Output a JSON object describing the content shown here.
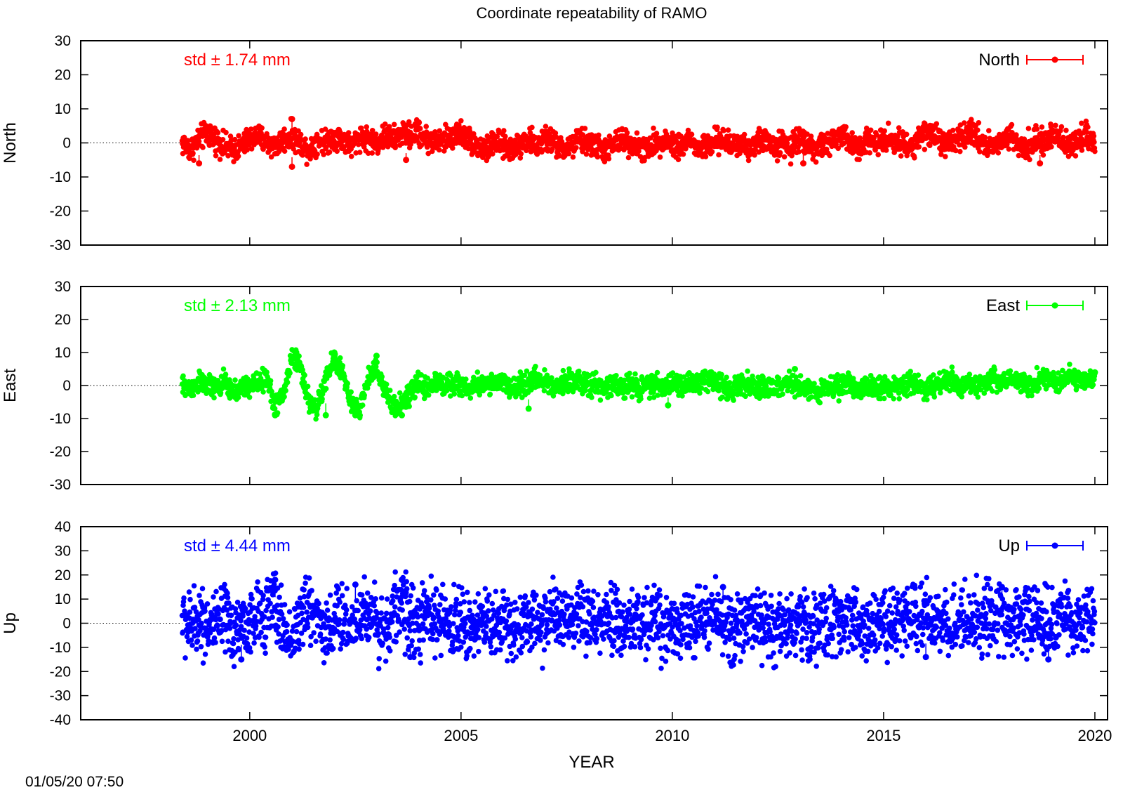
{
  "title": "Coordinate repeatability of RAMO",
  "timestamp": "01/05/20 07:50",
  "xlabel": "YEAR",
  "x_ticks": [
    2000,
    2005,
    2010,
    2015,
    2020
  ],
  "chart_data": [
    {
      "type": "scatter",
      "component": "North",
      "ylabel": "North",
      "legend": "North",
      "legend_position": "top-right",
      "std_text": "std ± 1.74 mm",
      "color": "#ff0000",
      "xlim": [
        1996,
        2020.3
      ],
      "ylim": [
        -30,
        30
      ],
      "y_ticks": [
        -30,
        -20,
        -10,
        0,
        10,
        20,
        30
      ],
      "zero_line_x_start": 1996,
      "x": [
        1998.4,
        1998.6,
        1998.8,
        1999.0,
        1999.2,
        1999.4,
        1999.6,
        1999.8,
        2000.0,
        2000.2,
        2000.4,
        2000.6,
        2000.8,
        2001.0,
        2001.2,
        2001.4,
        2001.6,
        2001.8,
        2002.0,
        2002.2,
        2002.4,
        2002.6,
        2002.8,
        2003.0,
        2003.2,
        2003.4,
        2003.6,
        2003.8,
        2004.0,
        2004.2,
        2004.4,
        2004.6,
        2004.8,
        2005.0,
        2005.2,
        2005.4,
        2005.6,
        2005.8,
        2006.0,
        2006.2,
        2006.4,
        2006.6,
        2006.8,
        2007.0,
        2007.2,
        2007.4,
        2007.6,
        2007.8,
        2008.0,
        2008.2,
        2008.4,
        2008.6,
        2008.8,
        2009.0,
        2009.2,
        2009.4,
        2009.6,
        2009.8,
        2010.0,
        2010.2,
        2010.4,
        2010.6,
        2010.8,
        2011.0,
        2011.2,
        2011.4,
        2011.6,
        2011.8,
        2012.0,
        2012.2,
        2012.4,
        2012.6,
        2012.8,
        2013.0,
        2013.2,
        2013.4,
        2013.6,
        2013.8,
        2014.0,
        2014.2,
        2014.4,
        2014.6,
        2014.8,
        2015.0,
        2015.2,
        2015.4,
        2015.6,
        2015.8,
        2016.0,
        2016.2,
        2016.4,
        2016.6,
        2016.8,
        2017.0,
        2017.2,
        2017.4,
        2017.6,
        2017.8,
        2018.0,
        2018.2,
        2018.4,
        2018.6,
        2018.8,
        2019.0,
        2019.2,
        2019.4,
        2019.6,
        2019.8,
        2020.0
      ],
      "y": [
        0,
        -2,
        1,
        3,
        1,
        -1,
        -2,
        -1,
        1,
        2,
        0,
        -1,
        1,
        2,
        0,
        -2,
        1,
        0,
        2,
        1,
        -1,
        2,
        1,
        0,
        2,
        1,
        3,
        2,
        3,
        1,
        0,
        1,
        2,
        3,
        1,
        -1,
        -2,
        0,
        -1,
        -2,
        0,
        1,
        -1,
        1,
        0,
        -2,
        -1,
        1,
        0,
        -1,
        -2,
        -1,
        1,
        0,
        -1,
        -2,
        0,
        1,
        0,
        -1,
        1,
        -2,
        -1,
        0,
        1,
        -1,
        0,
        -1,
        0,
        1,
        -1,
        0,
        -2,
        2,
        0,
        -2,
        -1,
        1,
        2,
        0,
        -1,
        1,
        0,
        2,
        1,
        0,
        -1,
        1,
        3,
        2,
        0,
        -1,
        1,
        3,
        2,
        0,
        -1,
        1,
        2,
        0,
        -1,
        1,
        0,
        2,
        1,
        -1,
        1,
        2,
        1
      ],
      "outliers": [
        {
          "x": 1998.8,
          "y": -6
        },
        {
          "x": 2001.0,
          "y": 7
        },
        {
          "x": 2001.0,
          "y": -7
        },
        {
          "x": 2003.7,
          "y": -5
        },
        {
          "x": 2004.0,
          "y": 6
        },
        {
          "x": 2013.1,
          "y": -6
        },
        {
          "x": 2016.1,
          "y": 5
        },
        {
          "x": 2018.7,
          "y": -6
        }
      ]
    },
    {
      "type": "scatter",
      "component": "East",
      "ylabel": "East",
      "legend": "East",
      "legend_position": "top-right",
      "std_text": "std ± 2.13 mm",
      "color": "#00ff00",
      "xlim": [
        1996,
        2020.3
      ],
      "ylim": [
        -30,
        30
      ],
      "y_ticks": [
        -30,
        -20,
        -10,
        0,
        10,
        20,
        30
      ],
      "zero_line_x_start": 1996,
      "x": [
        1998.4,
        1998.6,
        1998.8,
        1999.0,
        1999.2,
        1999.4,
        1999.6,
        1999.8,
        2000.0,
        2000.2,
        2000.4,
        2000.6,
        2000.8,
        2001.0,
        2001.2,
        2001.4,
        2001.6,
        2001.8,
        2002.0,
        2002.2,
        2002.4,
        2002.6,
        2002.8,
        2003.0,
        2003.2,
        2003.4,
        2003.6,
        2003.8,
        2004.0,
        2004.2,
        2004.4,
        2004.6,
        2004.8,
        2005.0,
        2005.2,
        2005.4,
        2005.6,
        2005.8,
        2006.0,
        2006.2,
        2006.4,
        2006.6,
        2006.8,
        2007.0,
        2007.2,
        2007.4,
        2007.6,
        2007.8,
        2008.0,
        2008.2,
        2008.4,
        2008.6,
        2008.8,
        2009.0,
        2009.2,
        2009.4,
        2009.6,
        2009.8,
        2010.0,
        2010.2,
        2010.4,
        2010.6,
        2010.8,
        2011.0,
        2011.2,
        2011.4,
        2011.6,
        2011.8,
        2012.0,
        2012.2,
        2012.4,
        2012.6,
        2012.8,
        2013.0,
        2013.2,
        2013.4,
        2013.6,
        2013.8,
        2014.0,
        2014.2,
        2014.4,
        2014.6,
        2014.8,
        2015.0,
        2015.2,
        2015.4,
        2015.6,
        2015.8,
        2016.0,
        2016.2,
        2016.4,
        2016.6,
        2016.8,
        2017.0,
        2017.2,
        2017.4,
        2017.6,
        2017.8,
        2018.0,
        2018.2,
        2018.4,
        2018.6,
        2018.8,
        2019.0,
        2019.2,
        2019.4,
        2019.6,
        2019.8,
        2020.0
      ],
      "y": [
        0,
        -1,
        1,
        0,
        -1,
        1,
        -2,
        -1,
        0,
        1,
        2,
        -6,
        -3,
        9,
        6,
        -5,
        -7,
        2,
        8,
        4,
        -6,
        -7,
        2,
        6,
        -2,
        -7,
        -5,
        -3,
        1,
        -1,
        1,
        0,
        1,
        0,
        -1,
        0,
        1,
        0,
        1,
        -1,
        0,
        1,
        2,
        1,
        0,
        1,
        2,
        1,
        0,
        0,
        -1,
        0,
        -1,
        1,
        -1,
        0,
        0,
        -1,
        1,
        0,
        1,
        0,
        2,
        1,
        0,
        -1,
        0,
        1,
        0,
        -1,
        -1,
        0,
        1,
        -1,
        -1,
        -2,
        0,
        -1,
        0,
        1,
        -1,
        0,
        -1,
        0,
        -1,
        0,
        1,
        0,
        -1,
        0,
        1,
        2,
        0,
        1,
        0,
        1,
        2,
        1,
        3,
        1,
        0,
        1,
        2,
        1,
        2,
        3,
        2,
        1,
        2
      ],
      "outliers": [
        {
          "x": 2001.1,
          "y": 10
        },
        {
          "x": 2002.0,
          "y": 10
        },
        {
          "x": 2003.0,
          "y": 9
        },
        {
          "x": 2000.6,
          "y": -9
        },
        {
          "x": 2001.8,
          "y": -9
        },
        {
          "x": 2002.5,
          "y": -9
        },
        {
          "x": 2003.6,
          "y": -9
        },
        {
          "x": 2006.6,
          "y": -7
        },
        {
          "x": 2009.9,
          "y": -6
        },
        {
          "x": 2012.9,
          "y": 5
        },
        {
          "x": 2011.3,
          "y": -4
        },
        {
          "x": 2020.0,
          "y": 4
        }
      ]
    },
    {
      "type": "scatter",
      "component": "Up",
      "ylabel": "Up",
      "legend": "Up",
      "legend_position": "top-right",
      "std_text": "std ± 4.44 mm",
      "color": "#0000ff",
      "xlim": [
        1996,
        2020.3
      ],
      "ylim": [
        -40,
        40
      ],
      "y_ticks": [
        -40,
        -30,
        -20,
        -10,
        0,
        10,
        20,
        30,
        40
      ],
      "zero_line_x_start": 1996,
      "x": [
        1998.4,
        1998.6,
        1998.8,
        1999.0,
        1999.2,
        1999.4,
        1999.6,
        1999.8,
        2000.0,
        2000.2,
        2000.4,
        2000.6,
        2000.8,
        2001.0,
        2001.2,
        2001.4,
        2001.6,
        2001.8,
        2002.0,
        2002.2,
        2002.4,
        2002.6,
        2002.8,
        2003.0,
        2003.2,
        2003.4,
        2003.6,
        2003.8,
        2004.0,
        2004.2,
        2004.4,
        2004.6,
        2004.8,
        2005.0,
        2005.2,
        2005.4,
        2005.6,
        2005.8,
        2006.0,
        2006.2,
        2006.4,
        2006.6,
        2006.8,
        2007.0,
        2007.2,
        2007.4,
        2007.6,
        2007.8,
        2008.0,
        2008.2,
        2008.4,
        2008.6,
        2008.8,
        2009.0,
        2009.2,
        2009.4,
        2009.6,
        2009.8,
        2010.0,
        2010.2,
        2010.4,
        2010.6,
        2010.8,
        2011.0,
        2011.2,
        2011.4,
        2011.6,
        2011.8,
        2012.0,
        2012.2,
        2012.4,
        2012.6,
        2012.8,
        2013.0,
        2013.2,
        2013.4,
        2013.6,
        2013.8,
        2014.0,
        2014.2,
        2014.4,
        2014.6,
        2014.8,
        2015.0,
        2015.2,
        2015.4,
        2015.6,
        2015.8,
        2016.0,
        2016.2,
        2016.4,
        2016.6,
        2016.8,
        2017.0,
        2017.2,
        2017.4,
        2017.6,
        2017.8,
        2018.0,
        2018.2,
        2018.4,
        2018.6,
        2018.8,
        2019.0,
        2019.2,
        2019.4,
        2019.6,
        2019.8,
        2020.0
      ],
      "y": [
        2,
        -2,
        3,
        0,
        -3,
        2,
        -4,
        1,
        -2,
        3,
        5,
        8,
        -3,
        -6,
        2,
        6,
        4,
        -4,
        1,
        3,
        -2,
        5,
        4,
        1,
        -3,
        4,
        8,
        2,
        -2,
        3,
        1,
        0,
        -1,
        1,
        -2,
        2,
        -1,
        0,
        1,
        -2,
        0,
        1,
        -1,
        2,
        3,
        1,
        -2,
        2,
        1,
        0,
        -1,
        1,
        -2,
        0,
        1,
        -1,
        2,
        0,
        -1,
        1,
        -2,
        2,
        1,
        3,
        -2,
        -1,
        0,
        -2,
        1,
        -1,
        -3,
        0,
        -2,
        1,
        -1,
        -3,
        0,
        1,
        -1,
        2,
        0,
        -1,
        2,
        1,
        0,
        2,
        -1,
        1,
        3,
        0,
        2,
        -1,
        3,
        2,
        1,
        3,
        0,
        2,
        1,
        3,
        0,
        2,
        -1,
        1,
        2,
        0,
        -1,
        2,
        1
      ],
      "outliers": [
        {
          "x": 2000.6,
          "y": 18
        },
        {
          "x": 2003.6,
          "y": 18
        },
        {
          "x": 2017.8,
          "y": 15
        },
        {
          "x": 2011.2,
          "y": 15
        },
        {
          "x": 1999.8,
          "y": -15
        },
        {
          "x": 2003.8,
          "y": -14
        },
        {
          "x": 2016.0,
          "y": -14
        },
        {
          "x": 2018.9,
          "y": -15
        },
        {
          "x": 2002.5,
          "y": 16
        }
      ]
    }
  ]
}
